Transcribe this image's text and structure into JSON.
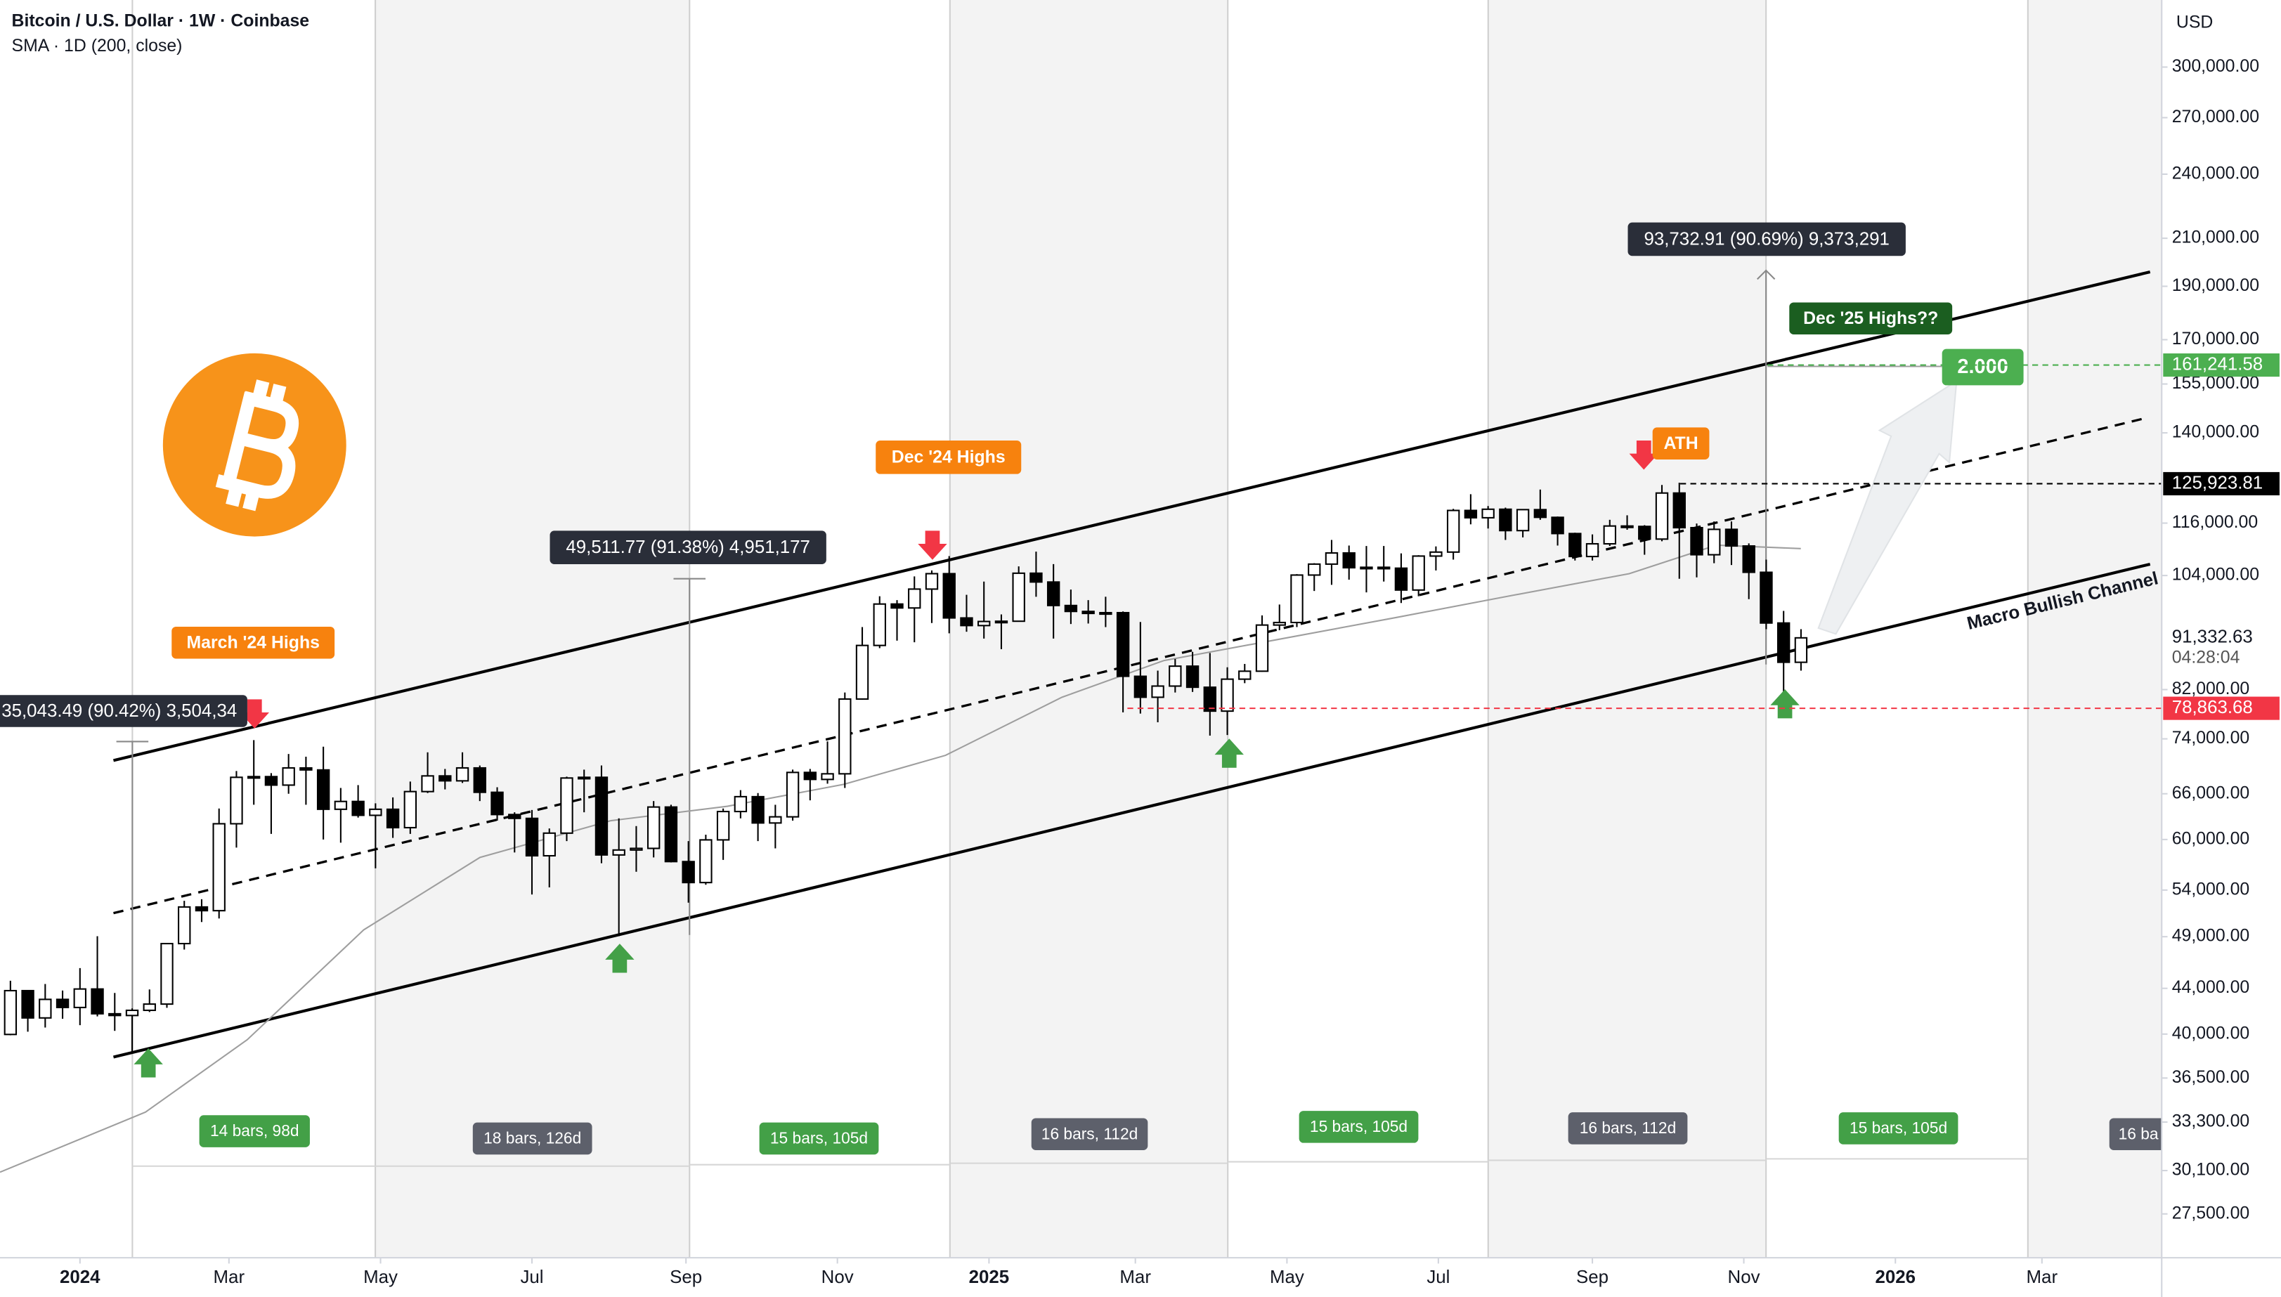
{
  "chart_data": {
    "type": "candlestick",
    "title": "Bitcoin / U.S. Dollar · 1W · Coinbase",
    "currency": "USD",
    "log_scale": true,
    "up_color": "#ffffff",
    "down_color": "#000000",
    "x": [
      0,
      1,
      2,
      3,
      4,
      5,
      6,
      7,
      8,
      9,
      10,
      11,
      12,
      13,
      14,
      15,
      16,
      17,
      18,
      19,
      20,
      21,
      22,
      23,
      24,
      25,
      26,
      27,
      28,
      29,
      30,
      31,
      32,
      33,
      34,
      35,
      36,
      37,
      38,
      39,
      40,
      41,
      42,
      43,
      44,
      45,
      46,
      47,
      48,
      49,
      50,
      51,
      52,
      53,
      54,
      55,
      56,
      57,
      58,
      59,
      60,
      61,
      62,
      63,
      64,
      65,
      66,
      67,
      68,
      69,
      70,
      71,
      72,
      73,
      74,
      75,
      76,
      77,
      78,
      79,
      80,
      81,
      82,
      83,
      84,
      85,
      86,
      87,
      88,
      89,
      90,
      91,
      92,
      93,
      94,
      95,
      96,
      97,
      98,
      99,
      100,
      101,
      102,
      103
    ],
    "open": [
      39970,
      43790,
      41370,
      43000,
      42280,
      43940,
      41730,
      41580,
      42030,
      42580,
      48300,
      52130,
      51730,
      62000,
      68300,
      68400,
      67200,
      69650,
      69360,
      63900,
      64950,
      63100,
      63900,
      61500,
      66300,
      68500,
      67800,
      69650,
      66200,
      63200,
      62700,
      58000,
      60800,
      68200,
      68300,
      58100,
      58700,
      58900,
      64200,
      57300,
      54850,
      59950,
      63600,
      65600,
      62100,
      62900,
      69000,
      68000,
      68800,
      80400,
      89900,
      98000,
      97200,
      101100,
      104400,
      95200,
      93700,
      94500,
      94550,
      104500,
      102600,
      97700,
      96500,
      96100,
      96250,
      84300,
      80700,
      82600,
      86100,
      82400,
      78400,
      83800,
      85200,
      93800,
      94300,
      104100,
      106500,
      109000,
      105700,
      105800,
      105600,
      100900,
      108300,
      109200,
      119100,
      117300,
      119400,
      114200,
      119300,
      117400,
      113500,
      108200,
      111100,
      115300,
      115200,
      112200,
      123500,
      114900,
      108600,
      114500,
      110600,
      104700,
      94200,
      86800
    ],
    "high": [
      44700,
      43800,
      44400,
      43800,
      45900,
      49050,
      43580,
      42200,
      43900,
      48200,
      52800,
      52980,
      64000,
      69200,
      73800,
      68900,
      71700,
      71300,
      72800,
      66800,
      67200,
      64700,
      65500,
      67700,
      71950,
      69500,
      71950,
      70000,
      66900,
      63500,
      63800,
      61400,
      68400,
      69400,
      70000,
      62700,
      61700,
      65000,
      64500,
      59800,
      60600,
      64000,
      66500,
      66100,
      64500,
      69400,
      69500,
      73600,
      81500,
      93400,
      99600,
      98800,
      103800,
      105100,
      108300,
      99900,
      102700,
      95900,
      106000,
      109300,
      106500,
      101000,
      98800,
      99500,
      96500,
      94400,
      85300,
      87400,
      88700,
      88500,
      85900,
      86500,
      95700,
      97900,
      104300,
      106700,
      112000,
      110700,
      110600,
      110600,
      108900,
      108500,
      110500,
      119500,
      123200,
      120200,
      119800,
      119400,
      124400,
      117600,
      113700,
      113300,
      116800,
      117900,
      115500,
      125600,
      126200,
      115900,
      116400,
      116400,
      111200,
      107500,
      96600,
      93000
    ],
    "low": [
      39900,
      40200,
      40550,
      41300,
      40750,
      41500,
      40270,
      38500,
      41880,
      42250,
      47700,
      50520,
      50900,
      59000,
      64500,
      60700,
      66000,
      64500,
      60000,
      59600,
      62800,
      56500,
      60200,
      60700,
      66100,
      66600,
      67500,
      65000,
      62400,
      58400,
      53500,
      54300,
      59800,
      63500,
      57100,
      49050,
      56100,
      57800,
      57200,
      52600,
      54600,
      57500,
      62700,
      59800,
      58900,
      62400,
      65100,
      67400,
      66800,
      80300,
      89400,
      90800,
      90500,
      94200,
      92200,
      92500,
      91200,
      89200,
      94500,
      99500,
      91200,
      94000,
      94100,
      93400,
      78200,
      78000,
      76600,
      81500,
      81600,
      74500,
      74600,
      83100,
      85100,
      92800,
      93400,
      100700,
      102000,
      103100,
      100400,
      102700,
      98200,
      99600,
      105100,
      107500,
      115700,
      114700,
      112000,
      112600,
      116800,
      110700,
      107300,
      107300,
      110600,
      114400,
      108600,
      111700,
      103300,
      103600,
      106700,
      106300,
      99000,
      93000,
      80600,
      85300
    ],
    "close": [
      43790,
      41370,
      43000,
      42280,
      43940,
      41730,
      41580,
      42030,
      42580,
      48300,
      52130,
      51730,
      62000,
      68300,
      68400,
      67200,
      69650,
      69360,
      63900,
      64950,
      63100,
      63900,
      61500,
      66300,
      68500,
      67800,
      69650,
      66200,
      63200,
      62700,
      58000,
      60800,
      68200,
      68300,
      58100,
      58700,
      58900,
      64200,
      57300,
      54850,
      59950,
      63600,
      65600,
      62100,
      62900,
      69000,
      68000,
      68800,
      80400,
      89900,
      98000,
      97200,
      101100,
      104400,
      95200,
      93700,
      94500,
      94550,
      104500,
      102600,
      97700,
      96500,
      96100,
      96250,
      84300,
      80700,
      82600,
      86100,
      82400,
      78400,
      83800,
      85200,
      93800,
      94300,
      104100,
      106500,
      109000,
      105700,
      105800,
      105600,
      100900,
      108300,
      109200,
      119100,
      117300,
      119400,
      114200,
      119300,
      117400,
      113500,
      108200,
      111100,
      115300,
      115200,
      112200,
      123500,
      114900,
      108600,
      114500,
      110600,
      104700,
      94200,
      86800,
      91332.63
    ],
    "sma": {
      "name": "SMA · 1D (200, close)",
      "color": "#9e9e9e",
      "x": [
        -0.6,
        7.77,
        13.62,
        20.32,
        27.01,
        34.54,
        41.24,
        47.93,
        53.79,
        60.49,
        66.34,
        73.04,
        79.73,
        86.43,
        93.12,
        98.14,
        102.99
      ],
      "values": [
        30000,
        34000,
        39530,
        49700,
        57800,
        62400,
        64300,
        67300,
        71500,
        80700,
        87100,
        91100,
        95300,
        99800,
        104400,
        110800,
        110000
      ]
    },
    "xlim": [
      -0.6,
      123.75
    ],
    "xticks": [
      {
        "value": 4,
        "label": "2024"
      },
      {
        "value": 12.57,
        "label": "Mar"
      },
      {
        "value": 21.29,
        "label": "May"
      },
      {
        "value": 30,
        "label": "Jul"
      },
      {
        "value": 38.86,
        "label": "Sep"
      },
      {
        "value": 47.57,
        "label": "Nov"
      },
      {
        "value": 56.29,
        "label": "2025"
      },
      {
        "value": 64.71,
        "label": "Mar"
      },
      {
        "value": 73.43,
        "label": "May"
      },
      {
        "value": 82.14,
        "label": "Jul"
      },
      {
        "value": 91,
        "label": "Sep"
      },
      {
        "value": 99.71,
        "label": "Nov"
      },
      {
        "value": 108.43,
        "label": "2026"
      },
      {
        "value": 116.86,
        "label": "Mar"
      }
    ],
    "ylim": [
      25100,
      345000
    ],
    "yticks": [
      {
        "value": 300000,
        "label": "300,000.00"
      },
      {
        "value": 270000,
        "label": "270,000.00"
      },
      {
        "value": 240000,
        "label": "240,000.00"
      },
      {
        "value": 210000,
        "label": "210,000.00"
      },
      {
        "value": 190000,
        "label": "190,000.00"
      },
      {
        "value": 170000,
        "label": "170,000.00"
      },
      {
        "value": 155000,
        "label": "155,000.00"
      },
      {
        "value": 140000,
        "label": "140,000.00"
      },
      {
        "value": 116000,
        "label": "116,000.00"
      },
      {
        "value": 104000,
        "label": "104,000.00"
      },
      {
        "value": 82000,
        "label": "82,000.00"
      },
      {
        "value": 74000,
        "label": "74,000.00"
      },
      {
        "value": 66000,
        "label": "66,000.00"
      },
      {
        "value": 60000,
        "label": "60,000.00"
      },
      {
        "value": 54000,
        "label": "54,000.00"
      },
      {
        "value": 49000,
        "label": "49,000.00"
      },
      {
        "value": 44000,
        "label": "44,000.00"
      },
      {
        "value": 40000,
        "label": "40,000.00"
      },
      {
        "value": 36500,
        "label": "36,500.00"
      },
      {
        "value": 33300,
        "label": "33,300.00"
      },
      {
        "value": 30100,
        "label": "30,100.00"
      },
      {
        "value": 27500,
        "label": "27,500.00"
      }
    ],
    "last_price": {
      "value": 91332.63,
      "label": "91,332.63"
    },
    "countdown": "04:28:04",
    "price_lines": [
      {
        "value": 161241.58,
        "label": "161,241.58",
        "color": "#4caf50"
      },
      {
        "value": 125923.81,
        "label": "125,923.81",
        "color": "#000000"
      },
      {
        "value": 78863.68,
        "label": "78,863.68",
        "color": "#f23645"
      }
    ],
    "annotations": [
      {
        "text": "March '24 Highs",
        "color": "#f7820e"
      },
      {
        "text": "Dec '24 Highs",
        "color": "#f7820e"
      },
      {
        "text": "ATH",
        "color": "#f7820e"
      },
      {
        "text": "Dec '25 Highs??",
        "color": "#1b5e20"
      },
      {
        "text": "2.000",
        "color": "#4caf50"
      }
    ],
    "measures": [
      {
        "text": "35,043.49 (90.42%) 3,504,34"
      },
      {
        "text": "49,511.77 (91.38%) 4,951,177"
      },
      {
        "text": "93,732.91 (90.69%) 9,373,291"
      }
    ],
    "bar_counts": [
      {
        "text": "14 bars, 98d",
        "color": "#43a047"
      },
      {
        "text": "18 bars, 126d",
        "color": "#5d606b"
      },
      {
        "text": "15 bars, 105d",
        "color": "#43a047"
      },
      {
        "text": "16 bars, 112d",
        "color": "#5d606b"
      },
      {
        "text": "15 bars, 105d",
        "color": "#43a047"
      },
      {
        "text": "16 bars, 112d",
        "color": "#5d606b"
      },
      {
        "text": "15 bars, 105d",
        "color": "#43a047"
      },
      {
        "text": "16 ba",
        "color": "#5d606b"
      }
    ],
    "channel_label": "Macro Bullish Channel"
  }
}
